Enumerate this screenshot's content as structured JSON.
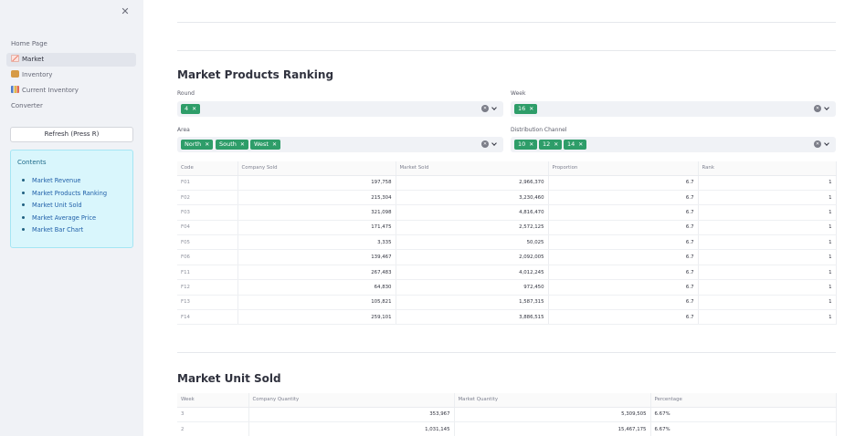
{
  "sidebar": {
    "close_icon": "✕",
    "nav": [
      {
        "label": "Home Page",
        "icon": ""
      },
      {
        "label": "Market",
        "icon": "chart-increasing-icon",
        "icon_color": "#e8563f"
      },
      {
        "label": "Inventory",
        "icon": "package-icon",
        "icon_color": "#d69a45"
      },
      {
        "label": "Current Inventory",
        "icon": "bar-chart-icon",
        "icon_color": "#4f7cc9"
      },
      {
        "label": "Converter",
        "icon": ""
      }
    ],
    "refresh_label": "Refresh (Press R)",
    "contents": {
      "title": "Contents",
      "items": [
        "Market Revenue",
        "Market Products Ranking",
        "Market Unit Sold",
        "Market Average Price",
        "Market Bar Chart"
      ]
    }
  },
  "ranking": {
    "title": "Market Products Ranking",
    "filters": {
      "round": {
        "label": "Round",
        "chips": [
          "4"
        ]
      },
      "week": {
        "label": "Week",
        "chips": [
          "16"
        ]
      },
      "area": {
        "label": "Area",
        "chips": [
          "North",
          "South",
          "West"
        ]
      },
      "channel": {
        "label": "Distribution Channel",
        "chips": [
          "10",
          "12",
          "14"
        ]
      }
    },
    "table": {
      "columns": [
        "Code",
        "Company Sold",
        "Market Sold",
        "Proportion",
        "Rank"
      ],
      "rows": [
        [
          "F01",
          "197,758",
          "2,966,370",
          "6.7",
          "1"
        ],
        [
          "F02",
          "215,304",
          "3,230,460",
          "6.7",
          "1"
        ],
        [
          "F03",
          "321,098",
          "4,816,470",
          "6.7",
          "1"
        ],
        [
          "F04",
          "171,475",
          "2,572,125",
          "6.7",
          "1"
        ],
        [
          "F05",
          "3,335",
          "50,025",
          "6.7",
          "1"
        ],
        [
          "F06",
          "139,467",
          "2,092,005",
          "6.7",
          "1"
        ],
        [
          "F11",
          "267,483",
          "4,012,245",
          "6.7",
          "1"
        ],
        [
          "F12",
          "64,830",
          "972,450",
          "6.7",
          "1"
        ],
        [
          "F13",
          "105,821",
          "1,587,315",
          "6.7",
          "1"
        ],
        [
          "F14",
          "259,101",
          "3,886,515",
          "6.7",
          "1"
        ]
      ]
    }
  },
  "unit_sold": {
    "title": "Market Unit Sold",
    "table": {
      "columns": [
        "Week",
        "Company Quantity",
        "Market Quantity",
        "Percentage"
      ],
      "rows": [
        [
          "3",
          "353,967",
          "5,309,505",
          "6.67%"
        ],
        [
          "2",
          "1,031,145",
          "15,467,175",
          "6.67%"
        ]
      ]
    }
  },
  "colors": {
    "chip": "#2e9d69",
    "sidebar_bg": "#f0f2f6",
    "contents_bg": "#d9f6fc"
  }
}
